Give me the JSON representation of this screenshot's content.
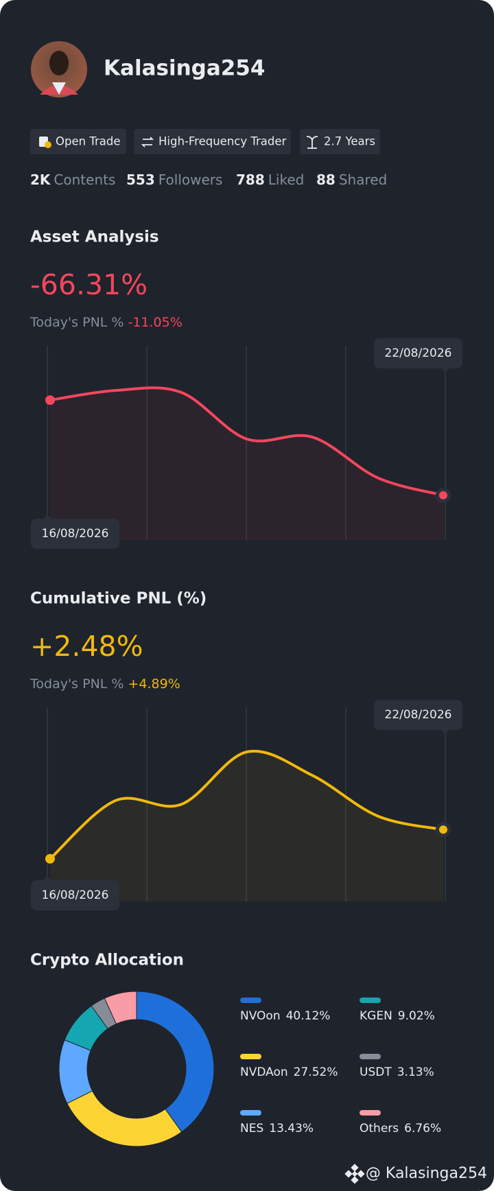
{
  "profile": {
    "name": "Kalasinga254",
    "tags": [
      "Open Trade",
      "High-Frequency Trader",
      "2.7 Years"
    ],
    "stats": [
      {
        "value": "2K",
        "label": "Contents"
      },
      {
        "value": "553",
        "label": "Followers"
      },
      {
        "value": "788",
        "label": "Liked"
      },
      {
        "value": "88",
        "label": "Shared"
      }
    ]
  },
  "chart_data": [
    {
      "type": "line",
      "title": "Asset Analysis",
      "value": "-66.31%",
      "today_label": "Today's PNL %",
      "today_value": "-11.05%",
      "start_date": "16/08/2026",
      "end_date": "22/08/2026",
      "color": "#f6465d",
      "values": [
        72,
        77,
        76,
        52,
        53,
        32,
        23
      ],
      "ylim": [
        0,
        100
      ]
    },
    {
      "type": "line",
      "title": "Cumulative PNL (%)",
      "value": "+2.48%",
      "today_label": "Today's PNL %",
      "today_value": "+4.89%",
      "start_date": "16/08/2026",
      "end_date": "22/08/2026",
      "color": "#f0b90b",
      "values": [
        22,
        52,
        50,
        77,
        65,
        44,
        37
      ],
      "ylim": [
        0,
        100
      ]
    },
    {
      "type": "pie",
      "title": "Crypto Allocation",
      "categories": [
        "NVOon",
        "NVDAon",
        "NES",
        "KGEN",
        "USDT",
        "Others"
      ],
      "values": [
        40.12,
        27.52,
        13.43,
        9.02,
        3.13,
        6.76
      ],
      "value_labels": [
        "40.12%",
        "27.52%",
        "13.43%",
        "9.02%",
        "3.13%",
        "6.76%"
      ],
      "colors": [
        "#1e6fd9",
        "#fcd535",
        "#5ea8ff",
        "#14a7b2",
        "#868d98",
        "#f89ca6"
      ]
    }
  ],
  "watermark": "@ Kalasinga254"
}
